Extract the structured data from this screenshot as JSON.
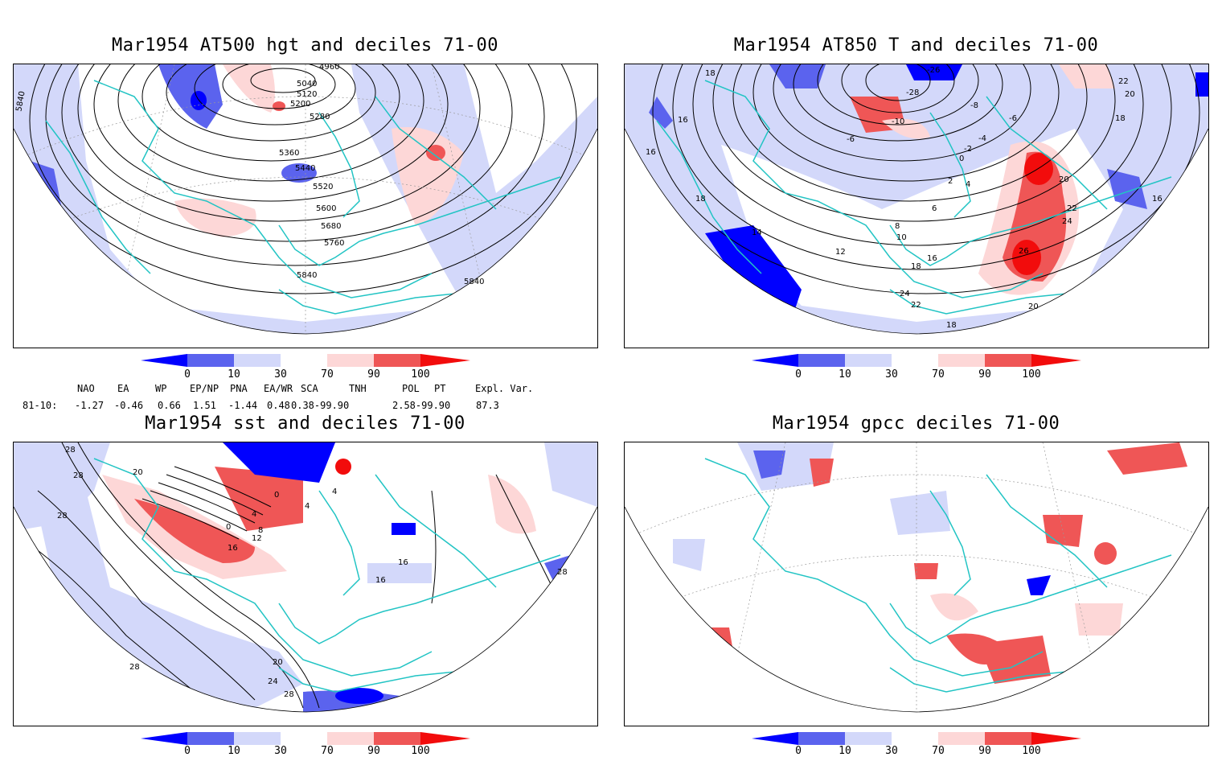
{
  "colors": {
    "d0": "#0000ff",
    "d10": "#5b63ee",
    "d30": "#d3d8fa",
    "d70": "#fdd7d7",
    "d90": "#ef5656",
    "d100": "#f20c0c",
    "coast": "#22c4c4",
    "contour": "#000000"
  },
  "panels": [
    {
      "title": "Mar1954 AT500 hgt and deciles 71-00",
      "contour_labels": [
        "4960",
        "5040",
        "5120",
        "5200",
        "5280",
        "5360",
        "5440",
        "5520",
        "5600",
        "5680",
        "5760",
        "5840",
        "5840",
        "5840"
      ]
    },
    {
      "title": "Mar1954 AT850 T and deciles 71-00",
      "contour_labels": [
        "-26",
        "-28",
        "-10",
        "-8",
        "-6",
        "-6",
        "-4",
        "-2",
        "0",
        "2",
        "4",
        "6",
        "8",
        "10",
        "12",
        "14",
        "16",
        "18",
        "18",
        "18",
        "16",
        "20",
        "22",
        "24",
        "26",
        "22",
        "24",
        "20",
        "18",
        "16",
        "22",
        "20",
        "18",
        "16"
      ]
    },
    {
      "title": "Mar1954 sst and deciles 71-00",
      "contour_labels": [
        "28",
        "28",
        "20",
        "28",
        "0",
        "0",
        "4",
        "4",
        "8",
        "12",
        "16",
        "16",
        "16",
        "20",
        "24",
        "28",
        "28",
        "28",
        "4"
      ]
    },
    {
      "title": "Mar1954 gpcc deciles 71-00",
      "contour_labels": []
    }
  ],
  "colorbar": {
    "labels": [
      "0",
      "10",
      "30",
      "70",
      "90",
      "100"
    ]
  },
  "indices": {
    "headers": [
      "NAO",
      "EA",
      "WP",
      "EP/NP",
      "PNA",
      "EA/WR",
      "SCA",
      "TNH",
      "POL",
      "PT",
      "Expl. Var."
    ],
    "row_label": "81-10:",
    "values": [
      "-1.27",
      "-0.46",
      "0.66",
      "1.51",
      "-1.44",
      "0.48",
      "0.38-99.90",
      "",
      "2.58-99.90",
      "",
      "87.3"
    ]
  }
}
